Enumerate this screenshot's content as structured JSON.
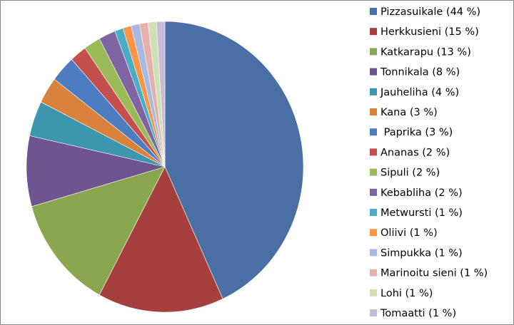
{
  "chart_data": {
    "type": "pie",
    "categories": [
      "Pizzasuikale (44 %)",
      "Herkkusieni (15 %)",
      "Katkarapu (13 %)",
      "Tonnikala (8 %)",
      "Jauheliha (4 %)",
      "Kana (3 %)",
      " Paprika (3 %)",
      "Ananas (2 %)",
      "Sipuli (2 %)",
      "Kebabliha (2 %)",
      "Metwursti (1 %)",
      "Oliivi (1 %)",
      "Simpukka (1 %)",
      "Marinoitu sieni (1 %)",
      "Lohi (1 %)",
      "Tomaatti (1 %)"
    ],
    "values": [
      44,
      15,
      13,
      8,
      4,
      3,
      3,
      2,
      2,
      2,
      1,
      1,
      1,
      1,
      1,
      1
    ],
    "colors": [
      "#4a6fa5",
      "#a5403d",
      "#8aa64f",
      "#6e558f",
      "#3c96ae",
      "#d9823b",
      "#4d7cc1",
      "#c4504d",
      "#9bbb59",
      "#8064a2",
      "#4bacc6",
      "#f79646",
      "#a7b9e0",
      "#e6b0ae",
      "#d0e0b5",
      "#c7bdd8"
    ],
    "legend": "right"
  }
}
